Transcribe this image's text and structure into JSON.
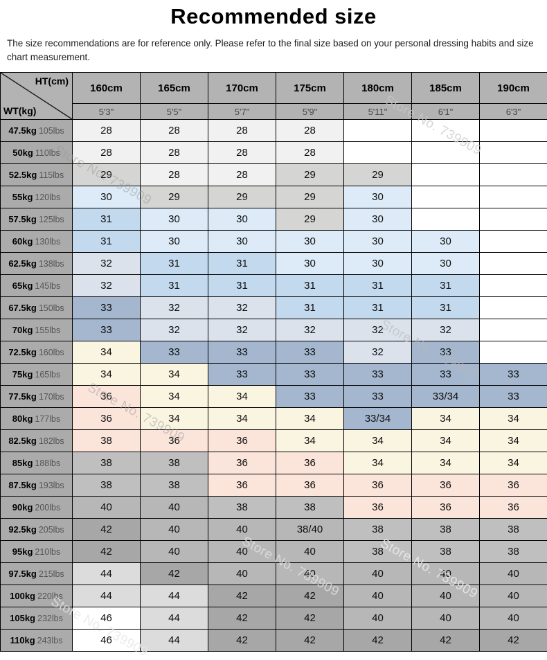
{
  "title": "Recommended size",
  "disclaimer": "The size recommendations are for reference only. Please refer to the final size based on your personal dressing habits and size chart measurement.",
  "watermark": "Store No. 739909",
  "palette": {
    "blank": "#ffffff",
    "s28": "#f1f1f1",
    "s29": "#d5d5d3",
    "s30": "#dcebf7",
    "s31": "#c3d9ee",
    "s32": "#dbe2ec",
    "s33": "#a4b7cf",
    "s34": "#f9f5e1",
    "s36": "#fbe4da",
    "s38": "#bfbfbf",
    "s40": "#b7b7b7",
    "s42": "#a7a7a7",
    "s44": "#dcdcdc",
    "s46": "#ffffff",
    "header": "#b3b3b3",
    "rowheader": "#ababab"
  },
  "chart_data": {
    "type": "table",
    "title": "Recommended size",
    "corner_top": "HT(cm)",
    "corner_bottom": "WT(kg)",
    "columns_cm": [
      "160cm",
      "165cm",
      "170cm",
      "175cm",
      "180cm",
      "185cm",
      "190cm"
    ],
    "columns_ft": [
      "5'3\"",
      "5'5\"",
      "5'7\"",
      "5'9\"",
      "5'11\"",
      "6'1\"",
      "6'3\""
    ],
    "rows": [
      {
        "kg": "47.5kg",
        "lbs": "105lbs",
        "values": [
          "28",
          "28",
          "28",
          "28",
          "",
          "",
          ""
        ],
        "colors": [
          "s28",
          "s28",
          "s28",
          "s28",
          "blank",
          "blank",
          "blank"
        ]
      },
      {
        "kg": "50kg",
        "lbs": "110lbs",
        "values": [
          "28",
          "28",
          "28",
          "28",
          "",
          "",
          ""
        ],
        "colors": [
          "s28",
          "s28",
          "s28",
          "s28",
          "blank",
          "blank",
          "blank"
        ]
      },
      {
        "kg": "52.5kg",
        "lbs": "115lbs",
        "values": [
          "29",
          "28",
          "28",
          "29",
          "29",
          "",
          ""
        ],
        "colors": [
          "s29",
          "s28",
          "s28",
          "s29",
          "s29",
          "blank",
          "blank"
        ]
      },
      {
        "kg": "55kg",
        "lbs": "120lbs",
        "values": [
          "30",
          "29",
          "29",
          "29",
          "30",
          "",
          ""
        ],
        "colors": [
          "s30",
          "s29",
          "s29",
          "s29",
          "s30",
          "blank",
          "blank"
        ]
      },
      {
        "kg": "57.5kg",
        "lbs": "125lbs",
        "values": [
          "31",
          "30",
          "30",
          "29",
          "30",
          "",
          ""
        ],
        "colors": [
          "s31",
          "s30",
          "s30",
          "s29",
          "s30",
          "blank",
          "blank"
        ]
      },
      {
        "kg": "60kg",
        "lbs": "130lbs",
        "values": [
          "31",
          "30",
          "30",
          "30",
          "30",
          "30",
          ""
        ],
        "colors": [
          "s31",
          "s30",
          "s30",
          "s30",
          "s30",
          "s30",
          "blank"
        ]
      },
      {
        "kg": "62.5kg",
        "lbs": "138lbs",
        "values": [
          "32",
          "31",
          "31",
          "30",
          "30",
          "30",
          ""
        ],
        "colors": [
          "s32",
          "s31",
          "s31",
          "s30",
          "s30",
          "s30",
          "blank"
        ]
      },
      {
        "kg": "65kg",
        "lbs": "145lbs",
        "values": [
          "32",
          "31",
          "31",
          "31",
          "31",
          "31",
          ""
        ],
        "colors": [
          "s32",
          "s31",
          "s31",
          "s31",
          "s31",
          "s31",
          "blank"
        ]
      },
      {
        "kg": "67.5kg",
        "lbs": "150lbs",
        "values": [
          "33",
          "32",
          "32",
          "31",
          "31",
          "31",
          ""
        ],
        "colors": [
          "s33",
          "s32",
          "s32",
          "s31",
          "s31",
          "s31",
          "blank"
        ]
      },
      {
        "kg": "70kg",
        "lbs": "155lbs",
        "values": [
          "33",
          "32",
          "32",
          "32",
          "32",
          "32",
          ""
        ],
        "colors": [
          "s33",
          "s32",
          "s32",
          "s32",
          "s32",
          "s32",
          "blank"
        ]
      },
      {
        "kg": "72.5kg",
        "lbs": "160lbs",
        "values": [
          "34",
          "33",
          "33",
          "33",
          "32",
          "33",
          ""
        ],
        "colors": [
          "s34",
          "s33",
          "s33",
          "s33",
          "s32",
          "s33",
          "blank"
        ]
      },
      {
        "kg": "75kg",
        "lbs": "165lbs",
        "values": [
          "34",
          "34",
          "33",
          "33",
          "33",
          "33",
          "33"
        ],
        "colors": [
          "s34",
          "s34",
          "s33",
          "s33",
          "s33",
          "s33",
          "s33"
        ]
      },
      {
        "kg": "77.5kg",
        "lbs": "170lbs",
        "values": [
          "36",
          "34",
          "34",
          "33",
          "33",
          "33/34",
          "33"
        ],
        "colors": [
          "s36",
          "s34",
          "s34",
          "s33",
          "s33",
          "s33",
          "s33"
        ]
      },
      {
        "kg": "80kg",
        "lbs": "177lbs",
        "values": [
          "36",
          "34",
          "34",
          "34",
          "33/34",
          "34",
          "34"
        ],
        "colors": [
          "s36",
          "s34",
          "s34",
          "s34",
          "s33",
          "s34",
          "s34"
        ]
      },
      {
        "kg": "82.5kg",
        "lbs": "182lbs",
        "values": [
          "38",
          "36",
          "36",
          "34",
          "34",
          "34",
          "34"
        ],
        "colors": [
          "s36",
          "s36",
          "s36",
          "s34",
          "s34",
          "s34",
          "s34"
        ]
      },
      {
        "kg": "85kg",
        "lbs": "188lbs",
        "values": [
          "38",
          "38",
          "36",
          "36",
          "34",
          "34",
          "34"
        ],
        "colors": [
          "s38",
          "s38",
          "s36",
          "s36",
          "s34",
          "s34",
          "s34"
        ]
      },
      {
        "kg": "87.5kg",
        "lbs": "193lbs",
        "values": [
          "38",
          "38",
          "36",
          "36",
          "36",
          "36",
          "36"
        ],
        "colors": [
          "s38",
          "s38",
          "s36",
          "s36",
          "s36",
          "s36",
          "s36"
        ]
      },
      {
        "kg": "90kg",
        "lbs": "200lbs",
        "values": [
          "40",
          "40",
          "38",
          "38",
          "36",
          "36",
          "36"
        ],
        "colors": [
          "s40",
          "s40",
          "s38",
          "s38",
          "s36",
          "s36",
          "s36"
        ]
      },
      {
        "kg": "92.5kg",
        "lbs": "205lbs",
        "values": [
          "42",
          "40",
          "40",
          "38/40",
          "38",
          "38",
          "38"
        ],
        "colors": [
          "s42",
          "s40",
          "s40",
          "s40",
          "s38",
          "s38",
          "s38"
        ]
      },
      {
        "kg": "95kg",
        "lbs": "210lbs",
        "values": [
          "42",
          "40",
          "40",
          "40",
          "38",
          "38",
          "38"
        ],
        "colors": [
          "s42",
          "s40",
          "s40",
          "s40",
          "s38",
          "s38",
          "s38"
        ]
      },
      {
        "kg": "97.5kg",
        "lbs": "215lbs",
        "values": [
          "44",
          "42",
          "40",
          "40",
          "40",
          "40",
          "40"
        ],
        "colors": [
          "s44",
          "s42",
          "s40",
          "s40",
          "s40",
          "s40",
          "s40"
        ]
      },
      {
        "kg": "100kg",
        "lbs": "220lbs",
        "values": [
          "44",
          "44",
          "42",
          "42",
          "40",
          "40",
          "40"
        ],
        "colors": [
          "s44",
          "s44",
          "s42",
          "s42",
          "s40",
          "s40",
          "s40"
        ]
      },
      {
        "kg": "105kg",
        "lbs": "232lbs",
        "values": [
          "46",
          "44",
          "42",
          "42",
          "40",
          "40",
          "40"
        ],
        "colors": [
          "s46",
          "s44",
          "s42",
          "s42",
          "s40",
          "s40",
          "s40"
        ]
      },
      {
        "kg": "110kg",
        "lbs": "243lbs",
        "values": [
          "46",
          "44",
          "42",
          "42",
          "42",
          "42",
          "42"
        ],
        "colors": [
          "s46",
          "s44",
          "s42",
          "s42",
          "s42",
          "s42",
          "s42"
        ]
      }
    ]
  }
}
